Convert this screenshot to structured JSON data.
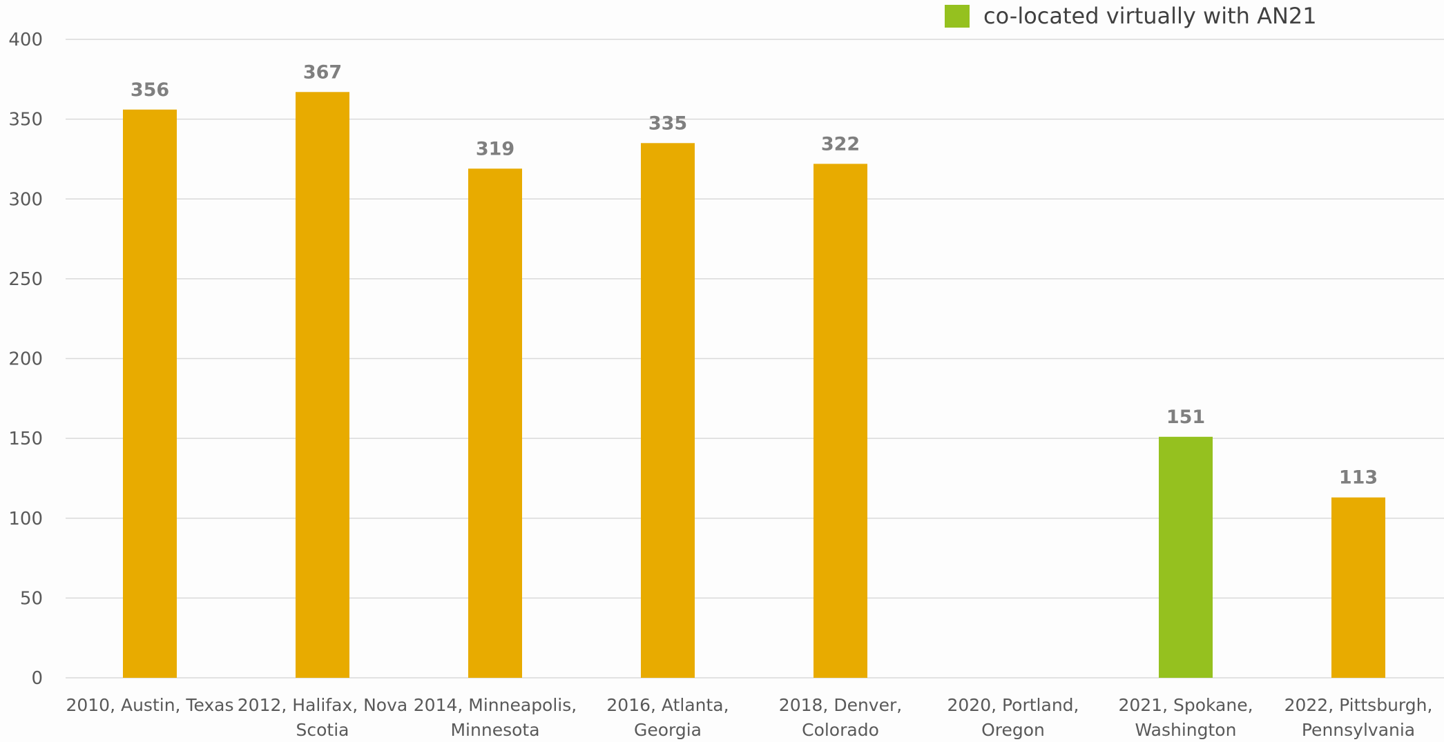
{
  "chart_data": {
    "type": "bar",
    "categories": [
      [
        "2010, Austin, Texas"
      ],
      [
        "2012, Halifax, Nova",
        "Scotia"
      ],
      [
        "2014, Minneapolis,",
        "Minnesota"
      ],
      [
        "2016, Atlanta,",
        "Georgia"
      ],
      [
        "2018, Denver,",
        "Colorado"
      ],
      [
        "2020, Portland,",
        "Oregon"
      ],
      [
        "2021, Spokane,",
        "Washington"
      ],
      [
        "2022, Pittsburgh,",
        "Pennsylvania"
      ]
    ],
    "values": [
      356,
      367,
      319,
      335,
      322,
      null,
      151,
      113
    ],
    "data_labels": [
      "356",
      "367",
      "319",
      "335",
      "322",
      "",
      "151",
      "113"
    ],
    "bar_colors": [
      "#e8ab00",
      "#e8ab00",
      "#e8ab00",
      "#e8ab00",
      "#e8ab00",
      "#e8ab00",
      "#95c11f",
      "#e8ab00"
    ],
    "ylim": [
      0,
      400
    ],
    "yticks": [
      0,
      50,
      100,
      150,
      200,
      250,
      300,
      350,
      400
    ],
    "grid": true,
    "legend_position": "top-right",
    "legend": [
      {
        "name": "co-located virtually with AN21",
        "color": "#95c11f"
      }
    ]
  }
}
